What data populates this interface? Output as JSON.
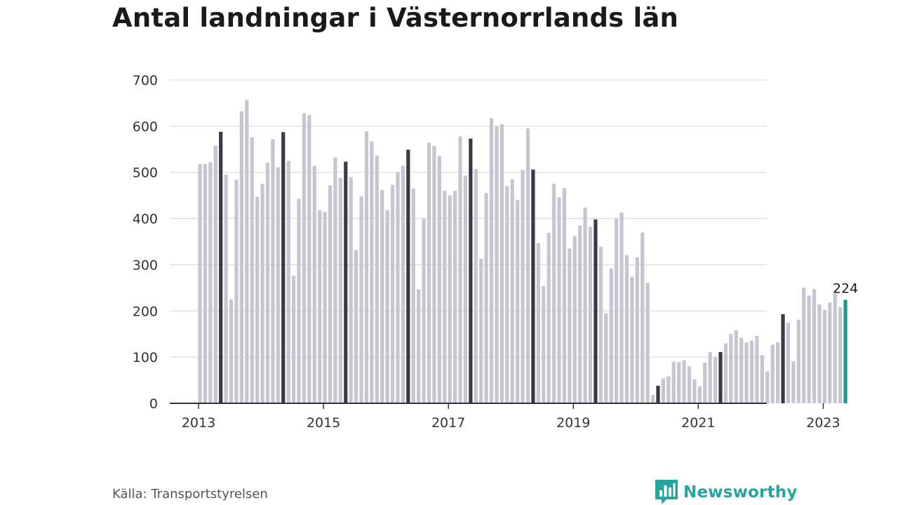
{
  "title": "Antal landningar i Västernorrlands län",
  "source": "Källa: Transportstyrelsen",
  "brand": "Newsworthy",
  "colors": {
    "bar": "#c6c5d1",
    "highlight": "#3a3946",
    "latest": "#1a9a94",
    "grid": "#dcdce2",
    "axis": "#333333",
    "brand": "#27a4a0"
  },
  "chart_data": {
    "type": "bar",
    "ylim": [
      0,
      700
    ],
    "yticks": [
      0,
      100,
      200,
      300,
      400,
      500,
      600,
      700
    ],
    "xticks": [
      "2013",
      "2015",
      "2017",
      "2019",
      "2021",
      "2023"
    ],
    "grid": true,
    "start": "2013-01",
    "series": [
      {
        "values": [
          518,
          518,
          522,
          558,
          588,
          495,
          225,
          484,
          632,
          657,
          576,
          447,
          475,
          521,
          572,
          511,
          587,
          525,
          276,
          443,
          628,
          624,
          514,
          418,
          414,
          472,
          532,
          488,
          523,
          490,
          332,
          448,
          589,
          567,
          536,
          462,
          418,
          473,
          500,
          514,
          549,
          465,
          247,
          400,
          564,
          557,
          535,
          460,
          450,
          460,
          578,
          493,
          573,
          507,
          313,
          455,
          617,
          600,
          604,
          470,
          485,
          440,
          505,
          595,
          506,
          347,
          254,
          369,
          475,
          446,
          466,
          335,
          362,
          385,
          424,
          382,
          398,
          339,
          195,
          292,
          400,
          413,
          321,
          274,
          316,
          370,
          261,
          18,
          38,
          54,
          58,
          90,
          89,
          93,
          80,
          52,
          37,
          88,
          111,
          100,
          111,
          130,
          150,
          158,
          142,
          132,
          136,
          146,
          104,
          69,
          127,
          132,
          193,
          174,
          91,
          181,
          250,
          233,
          247,
          214,
          202,
          218,
          238,
          208,
          224
        ]
      }
    ],
    "highlighted_months": [
      "2013-05",
      "2014-05",
      "2015-05",
      "2016-05",
      "2017-05",
      "2018-05",
      "2019-05",
      "2020-05",
      "2021-05",
      "2022-05"
    ],
    "latest": {
      "month": "2023-05",
      "value": 224,
      "label": "224"
    }
  }
}
